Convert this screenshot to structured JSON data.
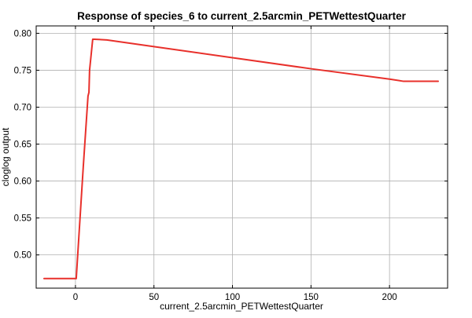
{
  "chart_data": {
    "type": "line",
    "title": "Response of species_6 to current_2.5arcmin_PETWettestQuarter",
    "xlabel": "current_2.5arcmin_PETWettestQuarter",
    "ylabel": "cloglog output",
    "xlim": [
      -25,
      237
    ],
    "ylim": [
      0.455,
      0.81
    ],
    "xticks": [
      0,
      50,
      100,
      150,
      200
    ],
    "yticks": [
      0.5,
      0.55,
      0.6,
      0.65,
      0.7,
      0.75,
      0.8
    ],
    "xtick_labels": [
      "0",
      "50",
      "100",
      "150",
      "200"
    ],
    "ytick_labels": [
      "0.50",
      "0.55",
      "0.60",
      "0.65",
      "0.70",
      "0.75",
      "0.80"
    ],
    "grid": true,
    "series": [
      {
        "color": "#e8302b",
        "x": [
          -20,
          0.5,
          1,
          5,
          8,
          8.6,
          9,
          11,
          12,
          20,
          50,
          100,
          150,
          200,
          209,
          231
        ],
        "y": [
          0.468,
          0.468,
          0.485,
          0.62,
          0.715,
          0.72,
          0.75,
          0.792,
          0.792,
          0.791,
          0.782,
          0.767,
          0.752,
          0.738,
          0.735,
          0.735
        ]
      }
    ]
  }
}
